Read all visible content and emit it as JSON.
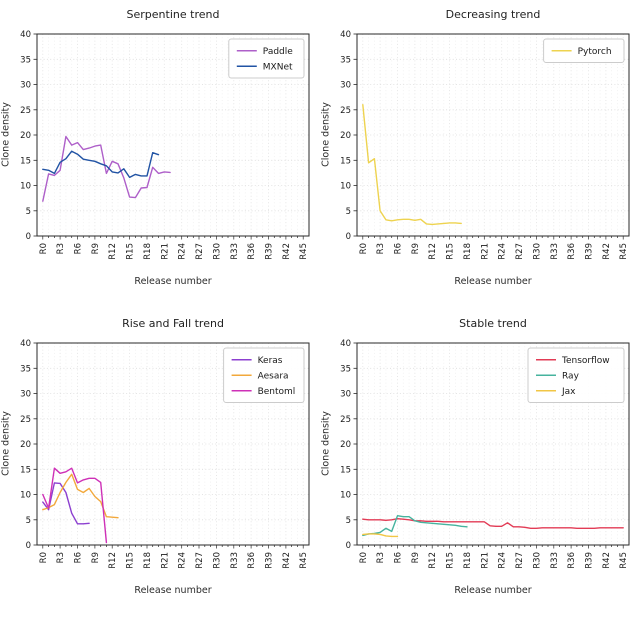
{
  "figure": {
    "background": "#ffffff",
    "frame_color": "#2a2a2a",
    "tick_label_color": "#1a1a1a",
    "grid_minor_color": "#efefef",
    "grid_major_color": "#e0e0e0",
    "grid_horizontal_color": "#dcdcdc"
  },
  "chart_data": [
    {
      "type": "line",
      "title": "Serpentine trend",
      "xlabel": "Release number",
      "ylabel": "Clone density",
      "ylim": [
        0,
        40
      ],
      "yticks": [
        0,
        5,
        10,
        15,
        20,
        25,
        30,
        35,
        40
      ],
      "x_count": 46,
      "xtick_step": 3,
      "xtick_labels": [
        "R0",
        "R3",
        "R6",
        "R9",
        "R12",
        "R15",
        "R18",
        "R21",
        "R24",
        "R27",
        "R30",
        "R33",
        "R36",
        "R39",
        "R42",
        "R45"
      ],
      "grid": true,
      "legend_position": "upper right",
      "series": [
        {
          "name": "Paddle",
          "color": "#ae5fc9",
          "values": [
            6.9,
            12.3,
            12.0,
            13.0,
            19.7,
            18.0,
            18.5,
            17.1,
            17.4,
            17.8,
            18.0,
            12.4,
            14.8,
            14.3,
            11.5,
            7.7,
            7.6,
            9.5,
            9.6,
            13.6,
            12.4,
            12.7,
            12.6
          ]
        },
        {
          "name": "MXNet",
          "color": "#2153a4",
          "values": [
            13.2,
            13.0,
            12.4,
            14.6,
            15.3,
            16.8,
            16.2,
            15.2,
            15.0,
            14.8,
            14.3,
            13.9,
            12.7,
            12.5,
            13.3,
            11.6,
            12.2,
            11.9,
            11.9,
            16.5,
            16.1
          ]
        }
      ]
    },
    {
      "type": "line",
      "title": "Decreasing trend",
      "xlabel": "Release number",
      "ylabel": "Clone density",
      "ylim": [
        0,
        40
      ],
      "yticks": [
        0,
        5,
        10,
        15,
        20,
        25,
        30,
        35,
        40
      ],
      "x_count": 46,
      "xtick_step": 3,
      "xtick_labels": [
        "R0",
        "R3",
        "R6",
        "R9",
        "R12",
        "R15",
        "R18",
        "R21",
        "R24",
        "R27",
        "R30",
        "R33",
        "R36",
        "R39",
        "R42",
        "R45"
      ],
      "grid": true,
      "legend_position": "upper right",
      "series": [
        {
          "name": "Pytorch",
          "color": "#eed34f",
          "values": [
            26.0,
            14.5,
            15.3,
            5.0,
            3.2,
            3.0,
            3.2,
            3.3,
            3.3,
            3.1,
            3.3,
            2.4,
            2.3,
            2.4,
            2.5,
            2.6,
            2.6,
            2.5
          ]
        }
      ]
    },
    {
      "type": "line",
      "title": "Rise and Fall trend",
      "xlabel": "Release number",
      "ylabel": "Clone density",
      "ylim": [
        0,
        40
      ],
      "yticks": [
        0,
        5,
        10,
        15,
        20,
        25,
        30,
        35,
        40
      ],
      "x_count": 46,
      "xtick_step": 3,
      "xtick_labels": [
        "R0",
        "R3",
        "R6",
        "R9",
        "R12",
        "R15",
        "R18",
        "R21",
        "R24",
        "R27",
        "R30",
        "R33",
        "R36",
        "R39",
        "R42",
        "R45"
      ],
      "grid": true,
      "legend_position": "upper right",
      "series": [
        {
          "name": "Keras",
          "color": "#8c3fd0",
          "values": [
            8.5,
            7.0,
            12.3,
            12.2,
            10.4,
            6.3,
            4.2,
            4.2,
            4.3
          ]
        },
        {
          "name": "Aesara",
          "color": "#f2a83b",
          "values": [
            7.0,
            7.4,
            8.0,
            10.4,
            12.4,
            14.0,
            11.0,
            10.4,
            11.2,
            9.6,
            8.6,
            5.6,
            5.5,
            5.4
          ]
        },
        {
          "name": "Bentoml",
          "color": "#ce30b7",
          "values": [
            10.0,
            7.3,
            15.2,
            14.2,
            14.5,
            15.2,
            12.3,
            12.9,
            13.2,
            13.2,
            12.4,
            0.5
          ]
        }
      ]
    },
    {
      "type": "line",
      "title": "Stable trend",
      "xlabel": "Release number",
      "ylabel": "Clone density",
      "ylim": [
        0,
        40
      ],
      "yticks": [
        0,
        5,
        10,
        15,
        20,
        25,
        30,
        35,
        40
      ],
      "x_count": 46,
      "xtick_step": 3,
      "xtick_labels": [
        "R0",
        "R3",
        "R6",
        "R9",
        "R12",
        "R15",
        "R18",
        "R21",
        "R24",
        "R27",
        "R30",
        "R33",
        "R36",
        "R39",
        "R42",
        "R45"
      ],
      "grid": true,
      "legend_position": "upper right",
      "series": [
        {
          "name": "Tensorflow",
          "color": "#e23b55",
          "values": [
            5.1,
            5.0,
            5.0,
            5.0,
            4.9,
            5.0,
            5.2,
            5.1,
            5.0,
            4.8,
            4.8,
            4.7,
            4.7,
            4.7,
            4.6,
            4.6,
            4.6,
            4.6,
            4.6,
            4.6,
            4.6,
            4.6,
            3.8,
            3.7,
            3.7,
            4.4,
            3.6,
            3.6,
            3.5,
            3.3,
            3.3,
            3.4,
            3.4,
            3.4,
            3.4,
            3.4,
            3.4,
            3.3,
            3.3,
            3.3,
            3.3,
            3.4,
            3.4,
            3.4,
            3.4,
            3.4
          ]
        },
        {
          "name": "Ray",
          "color": "#46b39e",
          "values": [
            1.9,
            2.2,
            2.3,
            2.5,
            3.3,
            2.7,
            5.8,
            5.6,
            5.6,
            4.8,
            4.5,
            4.4,
            4.3,
            4.2,
            4.1,
            4.0,
            3.9,
            3.7,
            3.6
          ]
        },
        {
          "name": "Jax",
          "color": "#f1c645",
          "values": [
            2.1,
            2.2,
            2.2,
            2.1,
            1.8,
            1.7,
            1.7
          ]
        }
      ]
    }
  ]
}
